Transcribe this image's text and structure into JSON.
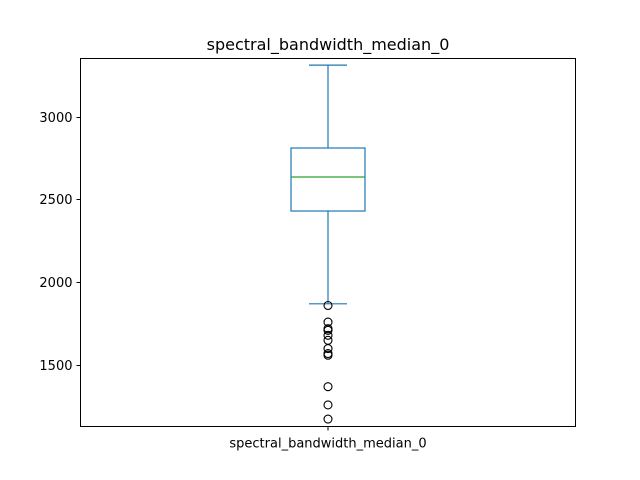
{
  "chart_data": {
    "type": "box",
    "title": "spectral_bandwidth_median_0",
    "xlabel": "",
    "ylabel": "",
    "categories": [
      "spectral_bandwidth_median_0"
    ],
    "ylim": [
      1130,
      3350
    ],
    "yticks": [
      1500,
      2000,
      2500,
      3000
    ],
    "grid": false,
    "box": {
      "whisker_low": 1870,
      "q1": 2430,
      "median": 2635,
      "q3": 2810,
      "whisker_high": 3310
    },
    "outliers": [
      1860,
      1760,
      1720,
      1710,
      1680,
      1650,
      1600,
      1570,
      1560,
      1370,
      1260,
      1175
    ]
  },
  "colors": {
    "box": "#1f77b4",
    "median": "#2ca02c",
    "outlier": "#000000",
    "axis": "#000000"
  }
}
